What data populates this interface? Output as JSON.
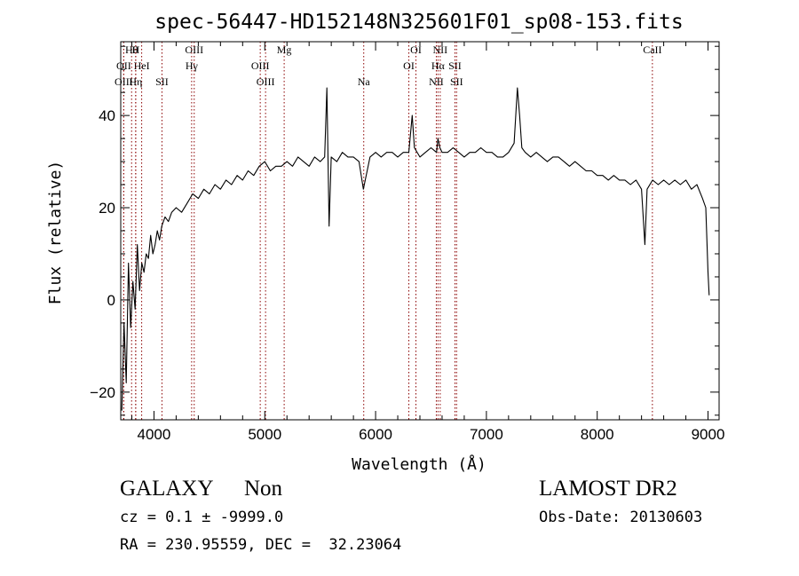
{
  "chart_data": {
    "type": "line",
    "title": "spec-56447-HD152148N325601F01_sp08-153.fits",
    "xlabel": "Wavelength (Å)",
    "ylabel": "Flux (relative)",
    "xlim": [
      3700,
      9100
    ],
    "ylim": [
      -26,
      56
    ],
    "xticks": [
      4000,
      5000,
      6000,
      7000,
      8000,
      9000
    ],
    "yticks": [
      -20,
      0,
      20,
      40
    ],
    "grid": false,
    "line_color": "#000000",
    "marker_color": "#8b0000",
    "series": [
      {
        "x": [
          3710,
          3730,
          3750,
          3770,
          3790,
          3810,
          3830,
          3850,
          3870,
          3890,
          3910,
          3930,
          3950,
          3970,
          3990,
          4010,
          4030,
          4050,
          4070,
          4100,
          4130,
          4160,
          4200,
          4250,
          4300,
          4350,
          4400,
          4450,
          4500,
          4550,
          4600,
          4650,
          4700,
          4750,
          4800,
          4850,
          4900,
          4950,
          5000,
          5050,
          5100,
          5150,
          5200,
          5250,
          5300,
          5350,
          5400,
          5450,
          5500,
          5540,
          5560,
          5580,
          5600,
          5650,
          5700,
          5750,
          5800,
          5850,
          5890,
          5950,
          6000,
          6050,
          6100,
          6150,
          6200,
          6250,
          6300,
          6330,
          6350,
          6400,
          6450,
          6500,
          6550,
          6563,
          6580,
          6600,
          6650,
          6700,
          6750,
          6800,
          6850,
          6900,
          6950,
          7000,
          7050,
          7100,
          7150,
          7200,
          7250,
          7280,
          7300,
          7320,
          7350,
          7400,
          7450,
          7500,
          7550,
          7600,
          7650,
          7700,
          7750,
          7800,
          7850,
          7900,
          7950,
          8000,
          8050,
          8100,
          8150,
          8200,
          8250,
          8300,
          8350,
          8400,
          8430,
          8450,
          8500,
          8550,
          8600,
          8650,
          8700,
          8750,
          8800,
          8850,
          8900,
          8950,
          8980,
          9000,
          9010
        ],
        "y": [
          -24,
          -5,
          -18,
          8,
          -6,
          4,
          -2,
          12,
          2,
          8,
          6,
          10,
          9,
          14,
          10,
          12,
          15,
          13,
          16,
          18,
          17,
          19,
          20,
          19,
          21,
          23,
          22,
          24,
          23,
          25,
          24,
          26,
          25,
          27,
          26,
          28,
          27,
          29,
          30,
          28,
          29,
          29,
          30,
          29,
          31,
          30,
          29,
          31,
          30,
          31,
          46,
          16,
          31,
          30,
          32,
          31,
          31,
          30,
          24,
          31,
          32,
          31,
          32,
          32,
          31,
          32,
          32,
          40,
          33,
          31,
          32,
          33,
          32,
          35,
          33,
          32,
          32,
          33,
          32,
          31,
          32,
          32,
          33,
          32,
          32,
          31,
          31,
          32,
          34,
          46,
          40,
          33,
          32,
          31,
          32,
          31,
          30,
          31,
          31,
          30,
          29,
          30,
          29,
          28,
          28,
          27,
          27,
          26,
          27,
          26,
          26,
          25,
          26,
          24,
          12,
          24,
          26,
          25,
          26,
          25,
          26,
          25,
          26,
          24,
          25,
          22,
          20,
          6,
          1
        ]
      }
    ],
    "line_markers": [
      {
        "label": "Hθ",
        "x": 3798,
        "row": 0
      },
      {
        "label": "OII",
        "x": 3727,
        "row": 1
      },
      {
        "label": "OIII",
        "x": 3727,
        "row": 2
      },
      {
        "label": "H",
        "x": 3835,
        "row": 0
      },
      {
        "label": "HeI",
        "x": 3889,
        "row": 1
      },
      {
        "label": "Hη",
        "x": 3835,
        "row": 2
      },
      {
        "label": "SII",
        "x": 4072,
        "row": 2
      },
      {
        "label": "OIII",
        "x": 4363,
        "row": 0
      },
      {
        "label": "Hγ",
        "x": 4340,
        "row": 1
      },
      {
        "label": "OIII",
        "x": 4959,
        "row": 1
      },
      {
        "label": "OIII",
        "x": 5007,
        "row": 2
      },
      {
        "label": "Mg",
        "x": 5175,
        "row": 0
      },
      {
        "label": "Na",
        "x": 5893,
        "row": 2
      },
      {
        "label": "OI",
        "x": 6364,
        "row": 0
      },
      {
        "label": "OI",
        "x": 6300,
        "row": 1
      },
      {
        "label": "NII",
        "x": 6583,
        "row": 0
      },
      {
        "label": "Hα",
        "x": 6563,
        "row": 1
      },
      {
        "label": "SII",
        "x": 6716,
        "row": 1
      },
      {
        "label": "NII",
        "x": 6548,
        "row": 2
      },
      {
        "label": "SII",
        "x": 6731,
        "row": 2
      },
      {
        "label": "CaII",
        "x": 8498,
        "row": 0
      }
    ]
  },
  "footer": {
    "object_class": "GALAXY",
    "subclass": "Non",
    "survey": "LAMOST DR2",
    "cz_line": "cz = 0.1 ± -9999.0",
    "obs_date": "Obs-Date: 20130603",
    "radec": "RA = 230.95559, DEC =  32.23064"
  }
}
